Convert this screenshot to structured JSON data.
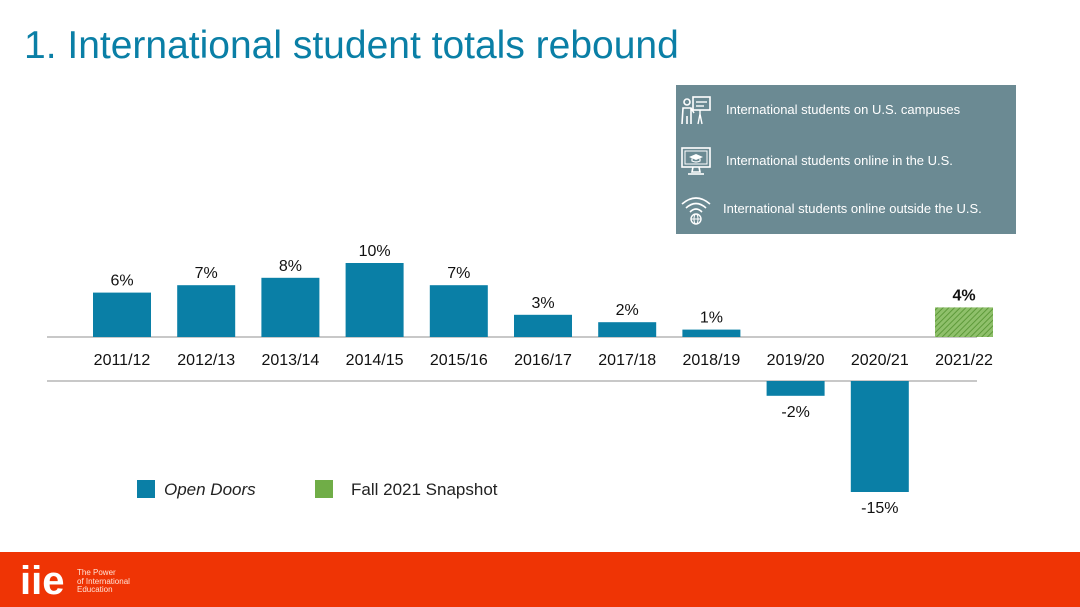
{
  "slide": {
    "title": "1. International student totals rebound"
  },
  "info_box": {
    "items": [
      {
        "label": "International students on U.S. campuses",
        "icon": "presenter-board-icon"
      },
      {
        "label": "International students online in the U.S.",
        "icon": "monitor-graduation-cap-icon"
      },
      {
        "label": "International students online outside the U.S.",
        "icon": "wifi-globe-icon"
      }
    ]
  },
  "chart_data": {
    "type": "bar",
    "categories": [
      "2011/12",
      "2012/13",
      "2013/14",
      "2014/15",
      "2015/16",
      "2016/17",
      "2017/18",
      "2018/19",
      "2019/20",
      "2020/21",
      "2021/22"
    ],
    "values": [
      6,
      7,
      8,
      10,
      7,
      3,
      2,
      1,
      -2,
      -15,
      4
    ],
    "data_labels": [
      "6%",
      "7%",
      "8%",
      "10%",
      "7%",
      "3%",
      "2%",
      "1%",
      "-2%",
      "-15%",
      "4%"
    ],
    "series_index": [
      0,
      0,
      0,
      0,
      0,
      0,
      0,
      0,
      0,
      0,
      1
    ],
    "series": [
      {
        "name": "Open Doors",
        "color": "#0a7fa6",
        "pattern": "solid"
      },
      {
        "name": "Fall 2021 Snapshot",
        "color": "#70ad47",
        "pattern": "hatched"
      }
    ],
    "title": "",
    "xlabel": "",
    "ylabel": "",
    "ylim": [
      -15,
      10
    ],
    "grid": false,
    "legend_position": "bottom-left"
  },
  "footer": {
    "logo_text": "iie",
    "tagline": [
      "The Power",
      "of International",
      "Education"
    ],
    "color": "#ef3405"
  }
}
